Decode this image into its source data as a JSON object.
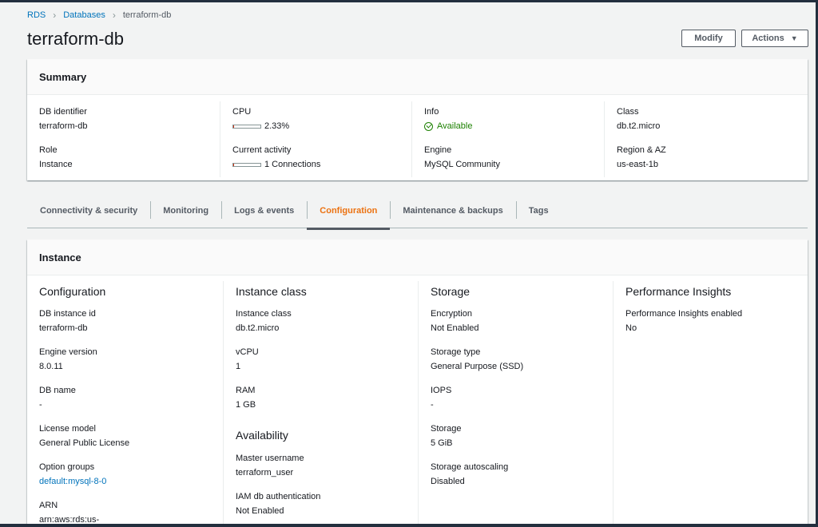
{
  "breadcrumb": {
    "items": [
      "RDS",
      "Databases"
    ],
    "current": "terraform-db"
  },
  "page_title": "terraform-db",
  "header_buttons": {
    "modify": "Modify",
    "actions": "Actions"
  },
  "summary": {
    "title": "Summary",
    "db_identifier": {
      "label": "DB identifier",
      "value": "terraform-db"
    },
    "cpu": {
      "label": "CPU",
      "value": "2.33%",
      "level_percent": 2.33
    },
    "info": {
      "label": "Info",
      "value": "Available"
    },
    "class": {
      "label": "Class",
      "value": "db.t2.micro"
    },
    "role": {
      "label": "Role",
      "value": "Instance"
    },
    "current_activity": {
      "label": "Current activity",
      "value": "1 Connections",
      "level_percent": 2
    },
    "engine": {
      "label": "Engine",
      "value": "MySQL Community"
    },
    "region_az": {
      "label": "Region & AZ",
      "value": "us-east-1b"
    }
  },
  "tabs": [
    "Connectivity & security",
    "Monitoring",
    "Logs & events",
    "Configuration",
    "Maintenance & backups",
    "Tags"
  ],
  "active_tab": "Configuration",
  "instance": {
    "title": "Instance",
    "configuration": {
      "title": "Configuration",
      "items": [
        {
          "label": "DB instance id",
          "value": "terraform-db"
        },
        {
          "label": "Engine version",
          "value": "8.0.11"
        },
        {
          "label": "DB name",
          "value": "-"
        },
        {
          "label": "License model",
          "value": "General Public License"
        },
        {
          "label": "Option groups",
          "value": "default:mysql-8-0"
        },
        {
          "label": "ARN",
          "value": "arn:aws:rds:us-"
        }
      ]
    },
    "instance_class": {
      "title": "Instance class",
      "items": [
        {
          "label": "Instance class",
          "value": "db.t2.micro"
        },
        {
          "label": "vCPU",
          "value": "1"
        },
        {
          "label": "RAM",
          "value": "1 GB"
        }
      ]
    },
    "availability": {
      "title": "Availability",
      "items": [
        {
          "label": "Master username",
          "value": "terraform_user"
        },
        {
          "label": "IAM db authentication",
          "value": "Not Enabled"
        }
      ]
    },
    "storage": {
      "title": "Storage",
      "items": [
        {
          "label": "Encryption",
          "value": "Not Enabled"
        },
        {
          "label": "Storage type",
          "value": "General Purpose (SSD)"
        },
        {
          "label": "IOPS",
          "value": "-"
        },
        {
          "label": "Storage",
          "value": "5 GiB"
        },
        {
          "label": "Storage autoscaling",
          "value": "Disabled"
        }
      ]
    },
    "performance_insights": {
      "title": "Performance Insights",
      "items": [
        {
          "label": "Performance Insights enabled",
          "value": "No"
        }
      ]
    }
  },
  "colors": {
    "link": "#0073bb",
    "active_tab": "#ec7211",
    "available": "#1d8102",
    "gauge": "#d13212"
  }
}
